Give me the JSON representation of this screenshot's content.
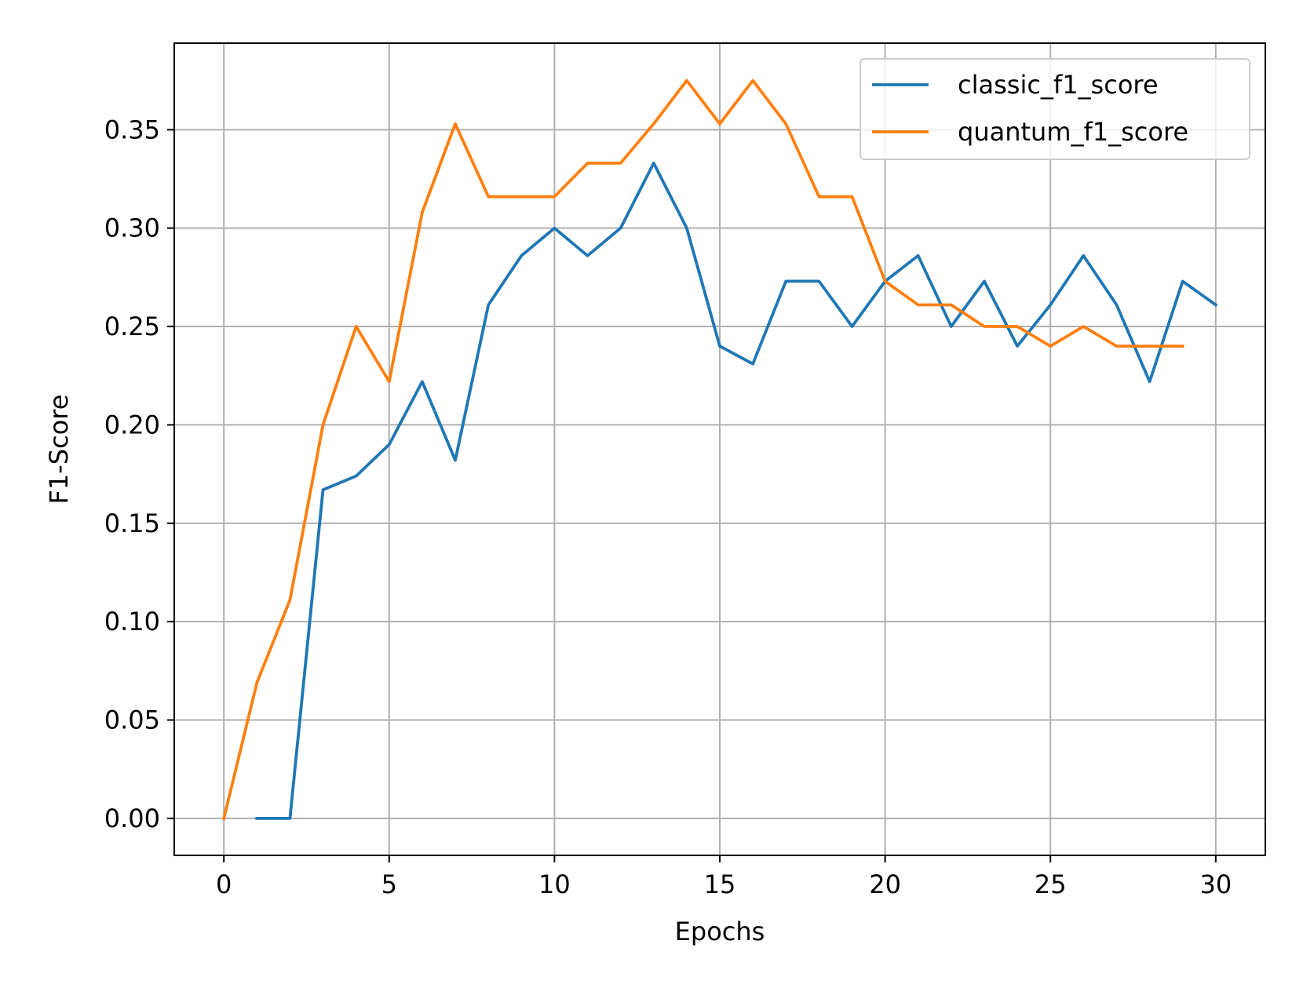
{
  "chart_data": {
    "type": "line",
    "xlabel": "Epochs",
    "ylabel": "F1-Score",
    "xlim": [
      -1.5,
      31.5
    ],
    "ylim": [
      -0.0188,
      0.394
    ],
    "x_ticks": [
      "0",
      "5",
      "10",
      "15",
      "20",
      "25",
      "30"
    ],
    "y_ticks": [
      "0.00",
      "0.05",
      "0.10",
      "0.15",
      "0.20",
      "0.25",
      "0.30",
      "0.35"
    ],
    "grid": true,
    "legend_position": "top-right",
    "series": [
      {
        "name": "classic_f1_score",
        "color": "#1f77b4",
        "x": [
          1,
          2,
          3,
          4,
          5,
          6,
          7,
          8,
          9,
          10,
          11,
          12,
          13,
          14,
          15,
          16,
          17,
          18,
          19,
          20,
          21,
          22,
          23,
          24,
          25,
          26,
          27,
          28,
          29,
          30
        ],
        "values": [
          0.0,
          0.0,
          0.167,
          0.174,
          0.19,
          0.222,
          0.182,
          0.261,
          0.286,
          0.3,
          0.286,
          0.3,
          0.333,
          0.3,
          0.24,
          0.231,
          0.273,
          0.273,
          0.25,
          0.273,
          0.286,
          0.25,
          0.273,
          0.24,
          0.261,
          0.286,
          0.261,
          0.222,
          0.273,
          0.261
        ]
      },
      {
        "name": "quantum_f1_score",
        "color": "#ff7f0e",
        "x": [
          0,
          1,
          2,
          3,
          4,
          5,
          6,
          7,
          8,
          9,
          10,
          11,
          12,
          13,
          14,
          15,
          16,
          17,
          18,
          19,
          20,
          21,
          22,
          23,
          24,
          25,
          26,
          27,
          28,
          29
        ],
        "values": [
          0.0,
          0.069,
          0.111,
          0.2,
          0.25,
          0.222,
          0.308,
          0.353,
          0.316,
          0.316,
          0.316,
          0.333,
          0.333,
          0.353,
          0.375,
          0.353,
          0.375,
          0.353,
          0.316,
          0.316,
          0.273,
          0.261,
          0.261,
          0.25,
          0.25,
          0.24,
          0.25,
          0.24,
          0.24,
          0.24
        ]
      }
    ]
  }
}
